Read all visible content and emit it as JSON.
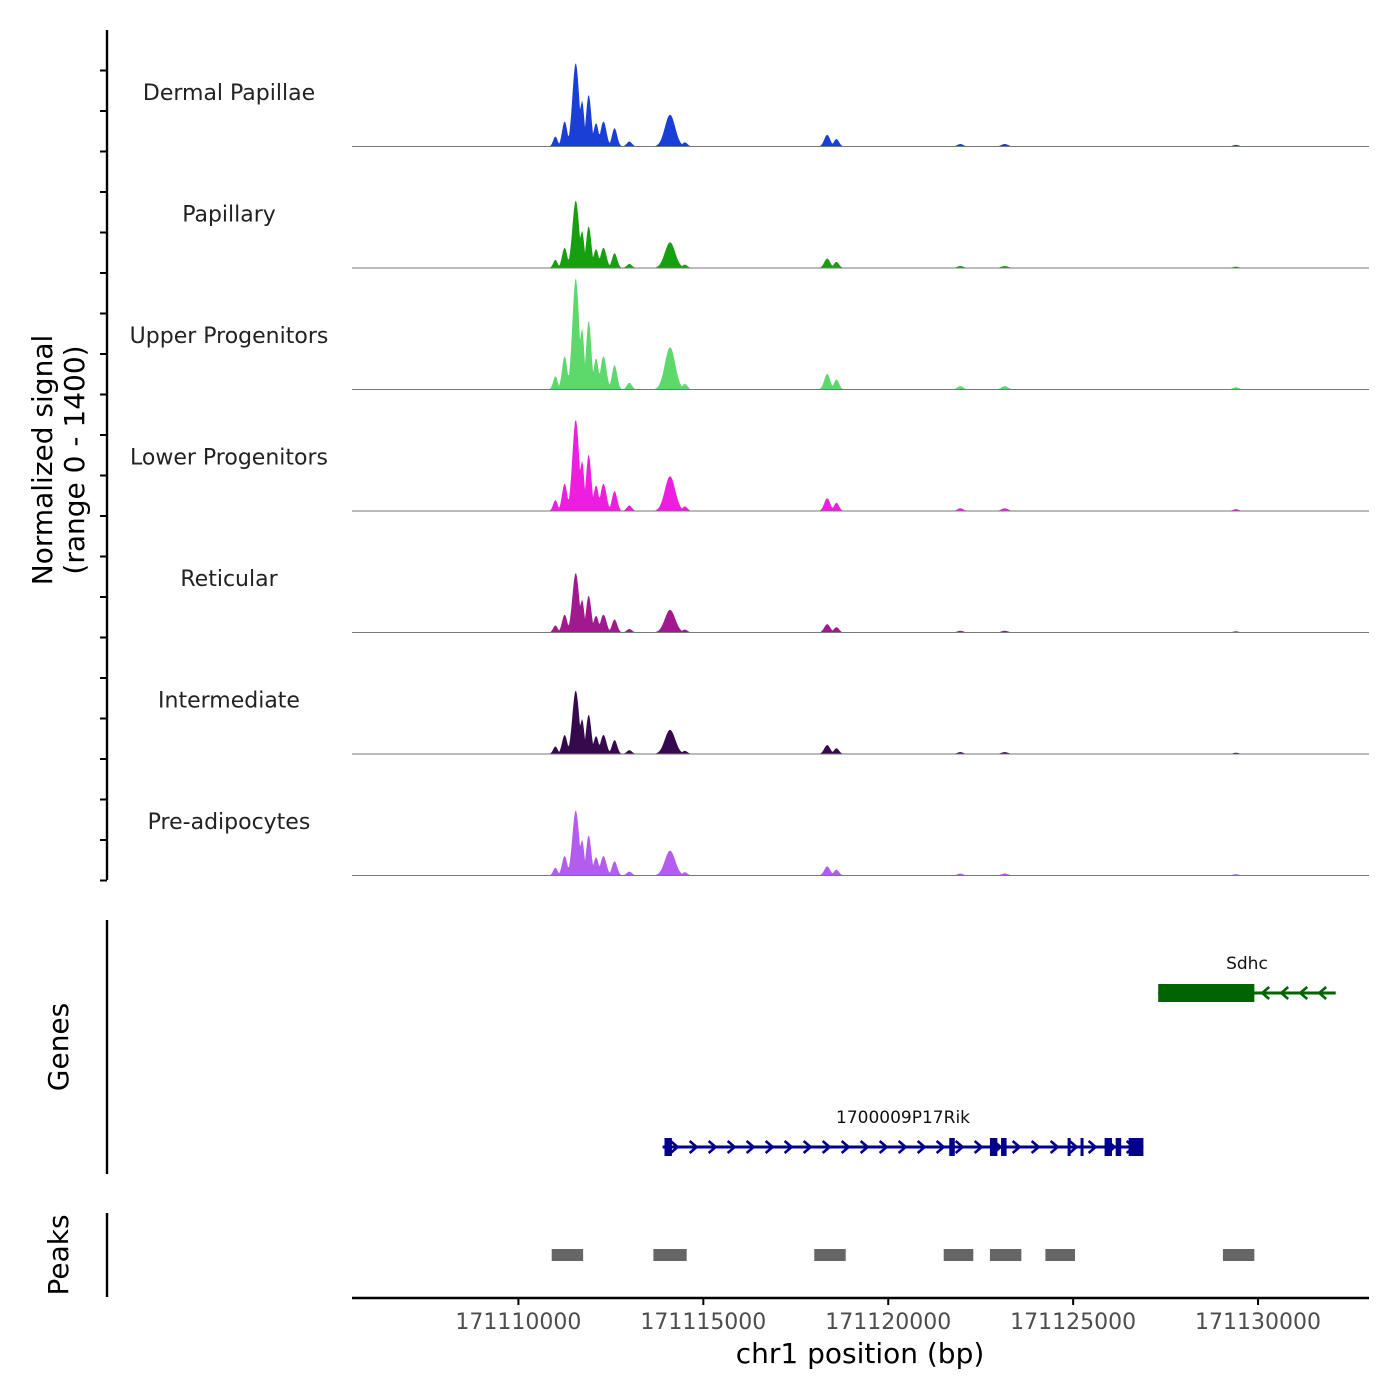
{
  "chart_data": {
    "type": "area",
    "chromosome": "chr1",
    "xlabel": "chr1 position (bp)",
    "ylabel_line1": "Normalized signal",
    "ylabel_line2": "(range 0 - 1400)",
    "y_range": [
      0,
      1400
    ],
    "xlim": [
      171105500,
      171133000
    ],
    "x_ticks": [
      {
        "value": 171110000,
        "label": "171110000"
      },
      {
        "value": 171115000,
        "label": "171115000"
      },
      {
        "value": 171120000,
        "label": "171120000"
      },
      {
        "value": 171125000,
        "label": "171125000"
      },
      {
        "value": 171130000,
        "label": "171130000"
      }
    ],
    "peak_shape": [
      {
        "center": 171111000,
        "width": 60,
        "rel": 0.12
      },
      {
        "center": 171111250,
        "width": 70,
        "rel": 0.3
      },
      {
        "center": 171111550,
        "width": 90,
        "rel": 1.0
      },
      {
        "center": 171111720,
        "width": 60,
        "rel": 0.55
      },
      {
        "center": 171111900,
        "width": 70,
        "rel": 0.62
      },
      {
        "center": 171112100,
        "width": 70,
        "rel": 0.28
      },
      {
        "center": 171112300,
        "width": 80,
        "rel": 0.3
      },
      {
        "center": 171112600,
        "width": 70,
        "rel": 0.22
      },
      {
        "center": 171113000,
        "width": 70,
        "rel": 0.06
      },
      {
        "center": 171114100,
        "width": 140,
        "rel": 0.38
      },
      {
        "center": 171114500,
        "width": 70,
        "rel": 0.05
      },
      {
        "center": 171118350,
        "width": 80,
        "rel": 0.14
      },
      {
        "center": 171118600,
        "width": 70,
        "rel": 0.09
      },
      {
        "center": 171121950,
        "width": 80,
        "rel": 0.03
      },
      {
        "center": 171123150,
        "width": 90,
        "rel": 0.03
      },
      {
        "center": 171129400,
        "width": 80,
        "rel": 0.02
      }
    ],
    "series": [
      {
        "name": "Dermal Papillae",
        "color": "#1a3fd6",
        "max": 1050
      },
      {
        "name": "Papillary",
        "color": "#16a00f",
        "max": 850
      },
      {
        "name": "Upper Progenitors",
        "color": "#5cd96a",
        "max": 1400
      },
      {
        "name": "Lower Progenitors",
        "color": "#ee1ee0",
        "max": 1150
      },
      {
        "name": "Reticular",
        "color": "#a0198e",
        "max": 750
      },
      {
        "name": "Intermediate",
        "color": "#36094e",
        "max": 800
      },
      {
        "name": "Pre-adipocytes",
        "color": "#b45cf0",
        "max": 820
      }
    ],
    "genes_label": "Genes",
    "genes": [
      {
        "name": "Sdhc",
        "strand": "-",
        "color": "#006400",
        "start": 171127300,
        "end": 171132100,
        "exons": [
          {
            "start": 171127300,
            "end": 171129900,
            "tall": true
          }
        ]
      },
      {
        "name": "1700009P17Rik",
        "strand": "+",
        "color": "#00008b",
        "start": 171113900,
        "end": 171126900,
        "exons": [
          {
            "start": 171113950,
            "end": 171114150,
            "tall": true
          },
          {
            "start": 171121650,
            "end": 171121800,
            "tall": true
          },
          {
            "start": 171122750,
            "end": 171122950,
            "tall": true
          },
          {
            "start": 171123050,
            "end": 171123200,
            "tall": true
          },
          {
            "start": 171124850,
            "end": 171124900,
            "tall": true
          },
          {
            "start": 171125200,
            "end": 171125250,
            "tall": true
          },
          {
            "start": 171125850,
            "end": 171126050,
            "tall": true
          },
          {
            "start": 171126150,
            "end": 171126300,
            "tall": true
          },
          {
            "start": 171126500,
            "end": 171126900,
            "tall": true
          }
        ]
      }
    ],
    "peaks_label": "Peaks",
    "peak_color": "#666666",
    "peaks": [
      {
        "start": 171110900,
        "end": 171111750
      },
      {
        "start": 171113650,
        "end": 171114550
      },
      {
        "start": 171118000,
        "end": 171118850
      },
      {
        "start": 171121500,
        "end": 171122300
      },
      {
        "start": 171122750,
        "end": 171123600
      },
      {
        "start": 171124250,
        "end": 171125050
      },
      {
        "start": 171129050,
        "end": 171129900
      }
    ]
  }
}
